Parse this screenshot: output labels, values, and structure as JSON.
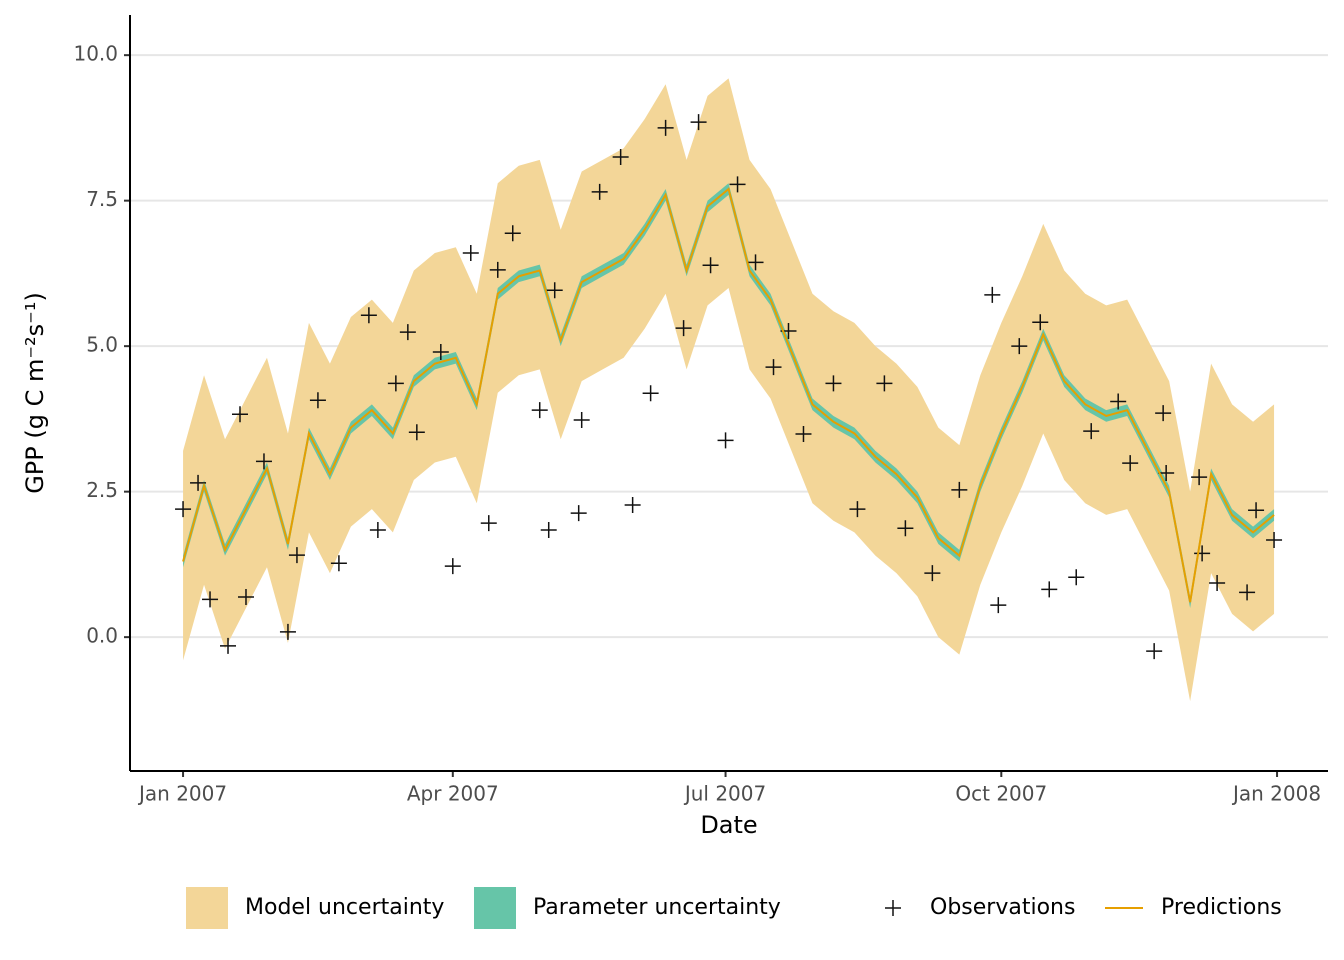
{
  "chart_data": {
    "type": "line",
    "x_label": "Date",
    "y_label": "GPP (g C m⁻²s⁻¹)",
    "x": [
      0,
      7,
      14,
      21,
      28,
      35,
      42,
      49,
      56,
      63,
      70,
      77,
      84,
      91,
      98,
      105,
      112,
      119,
      126,
      133,
      140,
      147,
      154,
      161,
      168,
      175,
      182,
      189,
      196,
      203,
      210,
      217,
      224,
      231,
      238,
      245,
      252,
      259,
      266,
      273,
      280,
      287,
      294,
      301,
      308,
      315,
      322,
      329,
      336,
      343,
      350,
      357,
      364
    ],
    "xlim": [
      -17.7,
      382
    ],
    "ylim": [
      -2.3,
      10.69
    ],
    "xticks": [
      {
        "value": 0,
        "label": "Jan 2007"
      },
      {
        "value": 90,
        "label": "Apr 2007"
      },
      {
        "value": 181,
        "label": "Jul 2007"
      },
      {
        "value": 273,
        "label": "Oct 2007"
      },
      {
        "value": 365,
        "label": "Jan 2008"
      }
    ],
    "yticks": [
      {
        "value": 0,
        "label": "0.0"
      },
      {
        "value": 2.5,
        "label": "2.5"
      },
      {
        "value": 5,
        "label": "5.0"
      },
      {
        "value": 7.5,
        "label": "7.5"
      },
      {
        "value": 10,
        "label": "10.0"
      }
    ],
    "grid": true,
    "series": [
      {
        "name": "Model uncertainty",
        "type": "band",
        "color": "#f3d698",
        "upper": [
          3.2,
          4.5,
          3.4,
          4.1,
          4.8,
          3.5,
          5.4,
          4.7,
          5.5,
          5.8,
          5.4,
          6.3,
          6.6,
          6.7,
          5.9,
          7.8,
          8.1,
          8.2,
          7.0,
          8.0,
          8.2,
          8.4,
          8.9,
          9.5,
          8.2,
          9.3,
          9.6,
          8.2,
          7.7,
          6.8,
          5.9,
          5.6,
          5.4,
          5.0,
          4.7,
          4.3,
          3.6,
          3.3,
          4.5,
          5.4,
          6.2,
          7.1,
          6.3,
          5.9,
          5.7,
          5.8,
          5.1,
          4.4,
          2.5,
          4.7,
          4.0,
          3.7,
          4.0
        ],
        "lower": [
          -0.4,
          0.9,
          -0.2,
          0.5,
          1.2,
          -0.1,
          1.8,
          1.1,
          1.9,
          2.2,
          1.8,
          2.7,
          3.0,
          3.1,
          2.3,
          4.2,
          4.5,
          4.6,
          3.4,
          4.4,
          4.6,
          4.8,
          5.3,
          5.9,
          4.6,
          5.7,
          6.0,
          4.6,
          4.1,
          3.2,
          2.3,
          2.0,
          1.8,
          1.4,
          1.1,
          0.7,
          0.0,
          -0.3,
          0.9,
          1.8,
          2.6,
          3.5,
          2.7,
          2.3,
          2.1,
          2.2,
          1.5,
          0.8,
          -1.1,
          1.1,
          0.4,
          0.1,
          0.4
        ]
      },
      {
        "name": "Parameter uncertainty",
        "type": "band",
        "color": "#66c5a8",
        "upper": [
          1.4,
          2.7,
          1.6,
          2.3,
          3.0,
          1.7,
          3.6,
          2.9,
          3.7,
          4.0,
          3.6,
          4.5,
          4.8,
          4.9,
          4.1,
          6.0,
          6.3,
          6.4,
          5.2,
          6.2,
          6.4,
          6.6,
          7.1,
          7.7,
          6.4,
          7.5,
          7.8,
          6.4,
          5.9,
          5.0,
          4.1,
          3.8,
          3.6,
          3.2,
          2.9,
          2.5,
          1.8,
          1.5,
          2.7,
          3.6,
          4.4,
          5.3,
          4.5,
          4.1,
          3.9,
          4.0,
          3.3,
          2.6,
          0.7,
          2.9,
          2.2,
          1.9,
          2.2
        ],
        "lower": [
          1.2,
          2.5,
          1.4,
          2.1,
          2.8,
          1.5,
          3.4,
          2.7,
          3.5,
          3.8,
          3.4,
          4.3,
          4.6,
          4.7,
          3.9,
          5.8,
          6.1,
          6.2,
          5.0,
          6.0,
          6.2,
          6.4,
          6.9,
          7.5,
          6.2,
          7.3,
          7.6,
          6.2,
          5.7,
          4.8,
          3.9,
          3.6,
          3.4,
          3.0,
          2.7,
          2.3,
          1.6,
          1.3,
          2.5,
          3.4,
          4.2,
          5.1,
          4.3,
          3.9,
          3.7,
          3.8,
          3.1,
          2.4,
          0.5,
          2.7,
          2.0,
          1.7,
          2.0
        ]
      },
      {
        "name": "Observations",
        "type": "scatter",
        "color": "#111111",
        "x": [
          0,
          5,
          9,
          15,
          19,
          21,
          27,
          35,
          38,
          45,
          52,
          62,
          65,
          71,
          75,
          78,
          86,
          90,
          96,
          102,
          105,
          110,
          119,
          122,
          124,
          132,
          133,
          139,
          146,
          150,
          156,
          161,
          167,
          172,
          176,
          181,
          185,
          191,
          197,
          202,
          207,
          217,
          225,
          234,
          241,
          250,
          259,
          270,
          272,
          279,
          286,
          289,
          298,
          303,
          312,
          316,
          324,
          327,
          328,
          339,
          340,
          345,
          355,
          358,
          364
        ],
        "values": [
          2.2,
          2.65,
          0.65,
          -0.15,
          3.83,
          0.69,
          3.02,
          0.09,
          1.41,
          4.07,
          1.27,
          5.53,
          1.84,
          4.36,
          5.24,
          3.52,
          4.9,
          1.22,
          6.6,
          1.96,
          6.31,
          6.94,
          3.9,
          1.84,
          5.96,
          2.13,
          3.73,
          7.65,
          8.25,
          2.27,
          4.19,
          8.75,
          5.31,
          8.85,
          6.39,
          3.38,
          7.78,
          6.44,
          4.64,
          5.26,
          3.49,
          4.36,
          2.2,
          4.36,
          1.87,
          1.1,
          2.53,
          5.88,
          0.55,
          5.0,
          5.41,
          0.82,
          1.03,
          3.54,
          4.05,
          2.99,
          -0.24,
          3.85,
          2.82,
          2.75,
          1.44,
          0.93,
          0.77,
          2.18,
          1.67
        ]
      },
      {
        "name": "Predictions",
        "type": "line",
        "color": "#e69f00",
        "values": [
          1.3,
          2.6,
          1.5,
          2.2,
          2.9,
          1.6,
          3.5,
          2.8,
          3.6,
          3.9,
          3.5,
          4.4,
          4.7,
          4.8,
          4.0,
          5.9,
          6.2,
          6.3,
          5.1,
          6.1,
          6.3,
          6.5,
          7.0,
          7.6,
          6.3,
          7.4,
          7.7,
          6.3,
          5.8,
          4.9,
          4.0,
          3.7,
          3.5,
          3.1,
          2.8,
          2.4,
          1.7,
          1.4,
          2.6,
          3.5,
          4.3,
          5.2,
          4.4,
          4.0,
          3.8,
          3.9,
          3.2,
          2.5,
          0.6,
          2.8,
          2.1,
          1.8,
          2.1
        ]
      }
    ]
  }
}
